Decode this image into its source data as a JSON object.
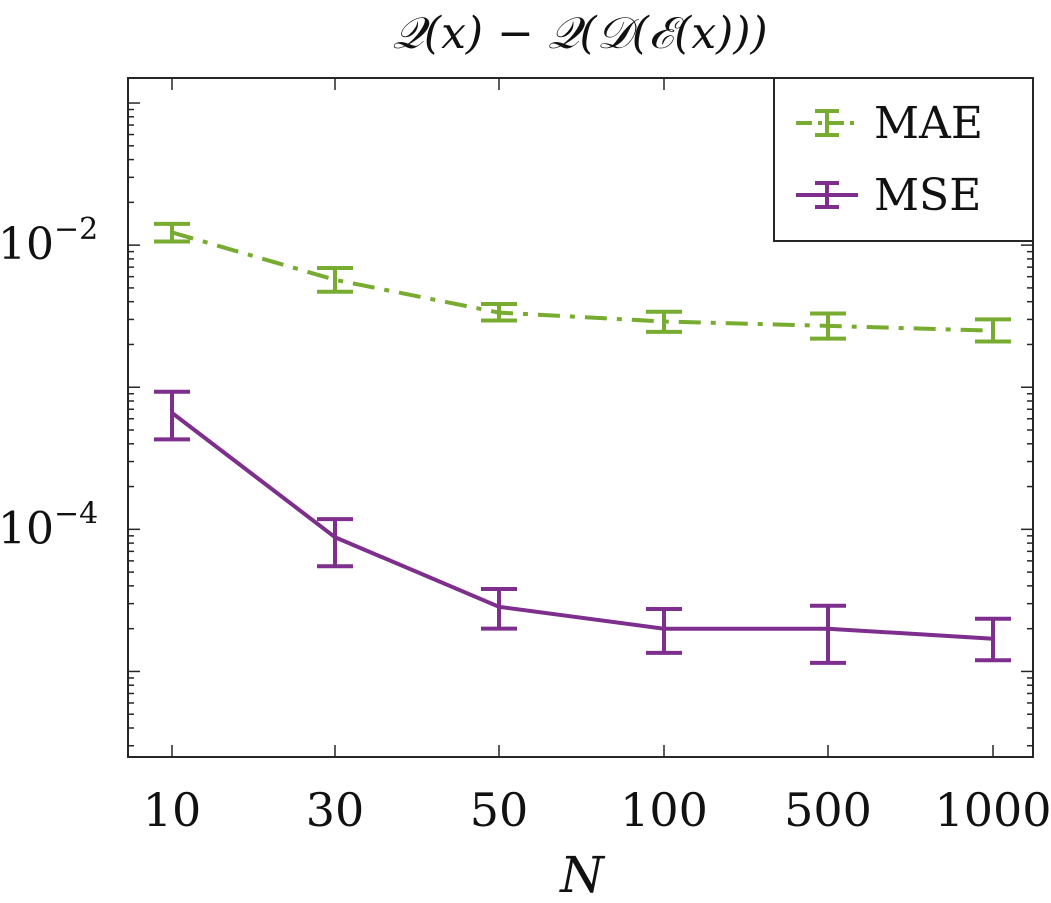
{
  "chart_data": {
    "type": "line",
    "title": "𝒬(x) − 𝒬(𝒟(ℰ(x)))",
    "xlabel": "N",
    "ylabel": "",
    "yscale": "log",
    "categories": [
      "10",
      "30",
      "50",
      "100",
      "500",
      "1000"
    ],
    "ylim": [
      2.5e-06,
      0.15
    ],
    "yticks": [
      {
        "value": 0.01,
        "base": "10",
        "exp": "−2"
      },
      {
        "value": 0.0001,
        "base": "10",
        "exp": "−4"
      }
    ],
    "grid": false,
    "legend_position": "top-right",
    "series": [
      {
        "name": "MAE",
        "color": "#77ac30",
        "line_style": "dash-dot",
        "values": [
          0.0123,
          0.0057,
          0.00335,
          0.0029,
          0.0027,
          0.0025
        ],
        "error_low": [
          0.0106,
          0.0047,
          0.00295,
          0.00245,
          0.0022,
          0.0021
        ],
        "error_high": [
          0.0141,
          0.0069,
          0.00385,
          0.0034,
          0.0033,
          0.003
        ]
      },
      {
        "name": "MSE",
        "color": "#7e2f8e",
        "line_style": "solid",
        "values": [
          0.00066,
          8.8e-05,
          2.85e-05,
          2e-05,
          2e-05,
          1.7e-05
        ],
        "error_low": [
          0.00043,
          5.5e-05,
          2e-05,
          1.35e-05,
          1.15e-05,
          1.2e-05
        ],
        "error_high": [
          0.00093,
          0.000118,
          3.8e-05,
          2.75e-05,
          2.9e-05,
          2.35e-05
        ]
      }
    ]
  }
}
